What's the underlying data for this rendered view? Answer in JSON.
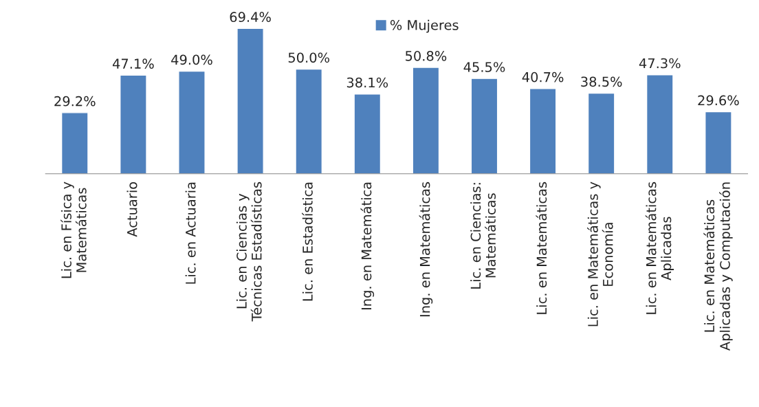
{
  "chart_data": {
    "type": "bar",
    "categories": [
      "Lic. en Física y\nMatemáticas",
      "Actuario",
      "Lic. en Actuaria",
      "Lic. en Ciencias y\nTécnicas Estadísticas",
      "Lic. en Estadística",
      "Ing. en Matemática",
      "Ing. en Matemáticas",
      "Lic. en Ciencias:\nMatemáticas",
      "Lic. en Matemáticas",
      "Lic. en Matemáticas y\nEconomía",
      "Lic. en Matemáticas\nAplicadas",
      "Lic. en Matemáticas\nAplicadas y Computación"
    ],
    "series": [
      {
        "name": "% Mujeres",
        "color": "#4f81bd",
        "values": [
          29.2,
          47.1,
          49.0,
          69.4,
          50.0,
          38.1,
          50.8,
          45.5,
          40.7,
          38.5,
          47.3,
          29.6
        ],
        "value_labels": [
          "29.2%",
          "47.1%",
          "49.0%",
          "69.4%",
          "50.0%",
          "38.1%",
          "50.8%",
          "45.5%",
          "40.7%",
          "38.5%",
          "47.3%",
          "29.6%"
        ]
      }
    ],
    "legend": "top",
    "grid": false
  }
}
